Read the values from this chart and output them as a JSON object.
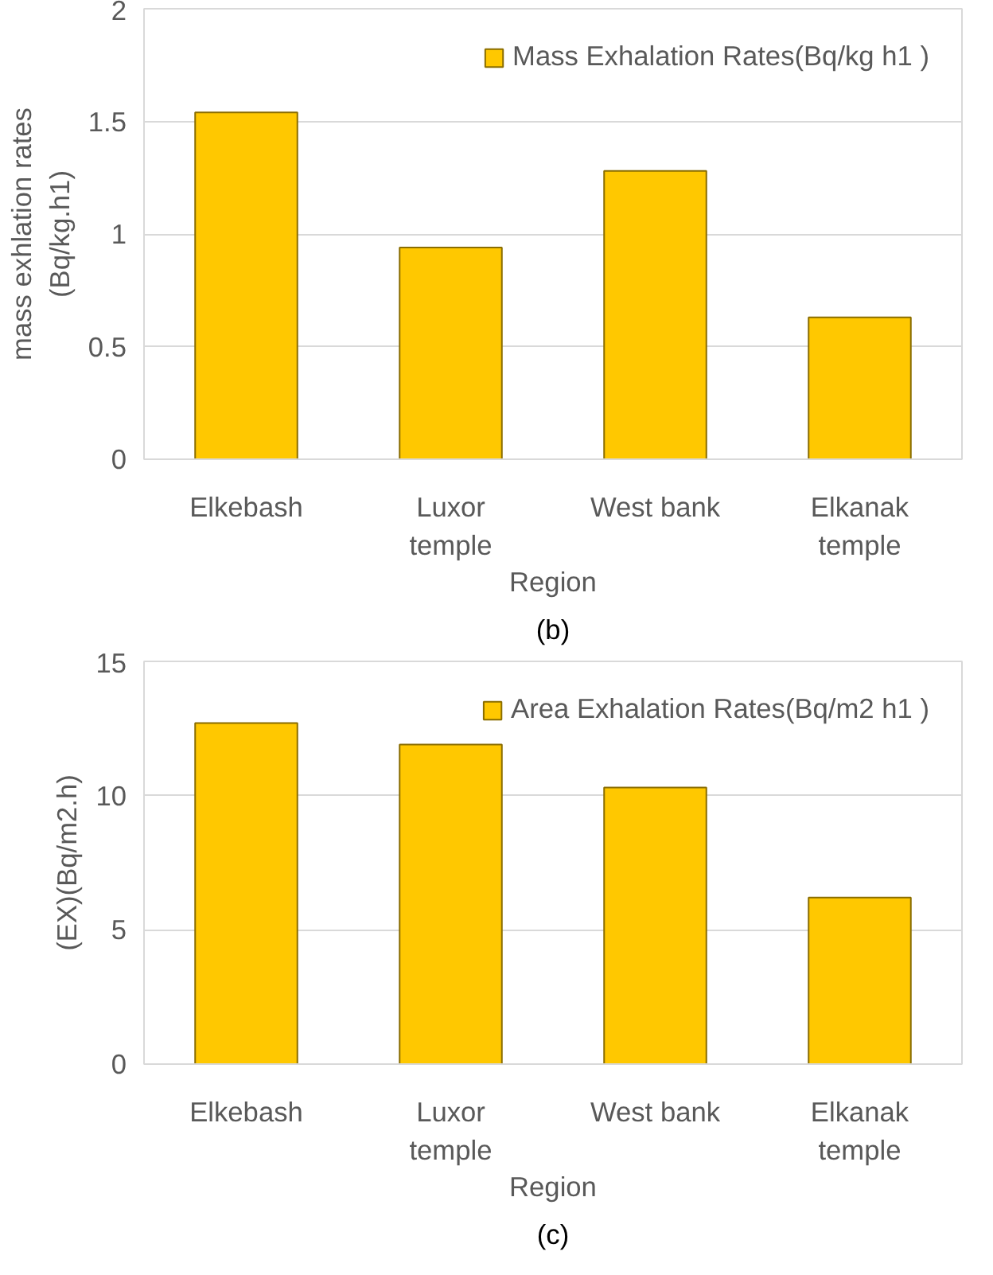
{
  "chart_data": [
    {
      "type": "bar",
      "categories": [
        "Elkebash",
        "Luxor temple",
        "West bank",
        "Elkanak temple"
      ],
      "xlabel": "Region",
      "ylabel": "mass exhlation rates (Bq/kg.h1)",
      "ylim": [
        0,
        2
      ],
      "yticks": [
        0,
        0.5,
        1,
        1.5,
        2
      ],
      "grid": "y",
      "legend": "top right",
      "annotations": [
        "(b)"
      ],
      "series": [
        {
          "name": "Mass Exhalation Rates(Bq/kg h1 )",
          "color": "#ffc800",
          "values": [
            1.54,
            0.94,
            1.28,
            0.63
          ]
        }
      ]
    },
    {
      "type": "bar",
      "categories": [
        "Elkebash",
        "Luxor temple",
        "West bank",
        "Elkanak temple"
      ],
      "xlabel": "Region",
      "ylabel": "(EX)(Bq/m2.h)",
      "ylim": [
        0,
        15
      ],
      "yticks": [
        0,
        5,
        10,
        15
      ],
      "grid": "y",
      "legend": "top right",
      "annotations": [
        "(c)"
      ],
      "series": [
        {
          "name": "Area Exhalation Rates(Bq/m2 h1 )",
          "color": "#ffc800",
          "values": [
            12.7,
            11.9,
            10.3,
            6.2
          ]
        }
      ]
    }
  ]
}
